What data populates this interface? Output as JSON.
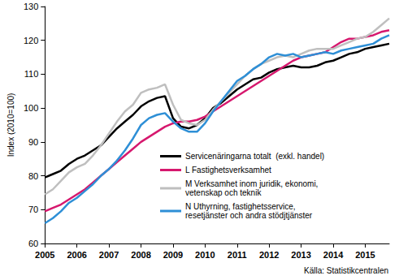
{
  "chart_data": {
    "type": "line",
    "ylabel": "Index (2010=100)",
    "annotation": "Källa: Statistikcentralen",
    "x": [
      2005,
      2005.25,
      2005.5,
      2005.75,
      2006,
      2006.25,
      2006.5,
      2006.75,
      2007,
      2007.25,
      2007.5,
      2007.75,
      2008,
      2008.25,
      2008.5,
      2008.75,
      2009,
      2009.25,
      2009.5,
      2009.75,
      2010,
      2010.25,
      2010.5,
      2010.75,
      2011,
      2011.25,
      2011.5,
      2011.75,
      2012,
      2012.25,
      2012.5,
      2012.75,
      2013,
      2013.25,
      2013.5,
      2013.75,
      2014,
      2014.25,
      2014.5,
      2014.75,
      2015,
      2015.25,
      2015.5,
      2015.75
    ],
    "series": [
      {
        "name": "Servicenäringarna totalt  (exkl. handel)",
        "color": "#000000",
        "values": [
          79.5,
          80.5,
          81.5,
          83.5,
          85,
          86,
          87.5,
          89,
          91.5,
          94,
          96,
          98,
          100.5,
          102,
          103,
          103.5,
          97,
          94.5,
          94,
          95,
          97,
          100,
          101.5,
          103.5,
          105.5,
          107,
          108.5,
          109,
          110.5,
          111.5,
          112,
          112.5,
          112,
          112,
          112.5,
          113.5,
          114,
          115,
          116,
          116.5,
          117.5,
          118,
          118.5,
          119
        ]
      },
      {
        "name": "L Fastighetsverksamhet",
        "color": "#d6186e",
        "values": [
          69.5,
          70.5,
          71.5,
          73,
          74.5,
          76,
          78,
          80,
          82,
          84,
          86,
          88,
          90,
          91.5,
          93,
          94.5,
          95.5,
          96,
          96,
          96.5,
          97.5,
          99,
          100.5,
          102,
          103.5,
          105,
          106.5,
          108,
          109.5,
          111,
          112.5,
          114,
          115,
          115.5,
          116,
          116.5,
          118,
          119.5,
          120.5,
          120.5,
          121,
          121.5,
          122.5,
          123
        ]
      },
      {
        "name": "M Verksamhet inom juridik, ekonomi, vetenskap och teknik",
        "color": "#bfbfbf",
        "values": [
          74.5,
          76,
          78.5,
          81,
          82.5,
          83.5,
          86,
          89,
          92.5,
          96,
          99,
          101,
          104.5,
          105.5,
          106,
          107,
          101,
          96.5,
          95.5,
          95,
          96.5,
          99.5,
          102,
          104.5,
          107,
          109.5,
          111.5,
          113,
          114,
          115,
          115.5,
          115,
          116,
          117,
          117.5,
          117.5,
          117.5,
          118.5,
          119.5,
          120.5,
          121,
          122.5,
          124.5,
          126.5
        ]
      },
      {
        "name": "N Uthyrning, fastighetsservice, resetjänster och andra stödjtjänster",
        "color": "#2e8fd6",
        "values": [
          66,
          67.5,
          69.5,
          72,
          73.5,
          75.5,
          77.5,
          80,
          82,
          84.5,
          87.5,
          91,
          95,
          97,
          98,
          98.5,
          96,
          94,
          93,
          93,
          95.5,
          99,
          102,
          105,
          108,
          109.5,
          111.5,
          113,
          115,
          116,
          115.5,
          116,
          115,
          115.5,
          116,
          116.5,
          116,
          117,
          117.5,
          118,
          118.5,
          119,
          120.5,
          121.5
        ]
      }
    ],
    "xlim": [
      2005,
      2015.75
    ],
    "xticks": [
      2005,
      2006,
      2007,
      2008,
      2009,
      2010,
      2011,
      2012,
      2013,
      2014,
      2015
    ],
    "ylim": [
      60,
      130
    ],
    "yticks": [
      60,
      70,
      80,
      90,
      100,
      110,
      120,
      130
    ],
    "grid": false,
    "legend": "bottom-right"
  }
}
